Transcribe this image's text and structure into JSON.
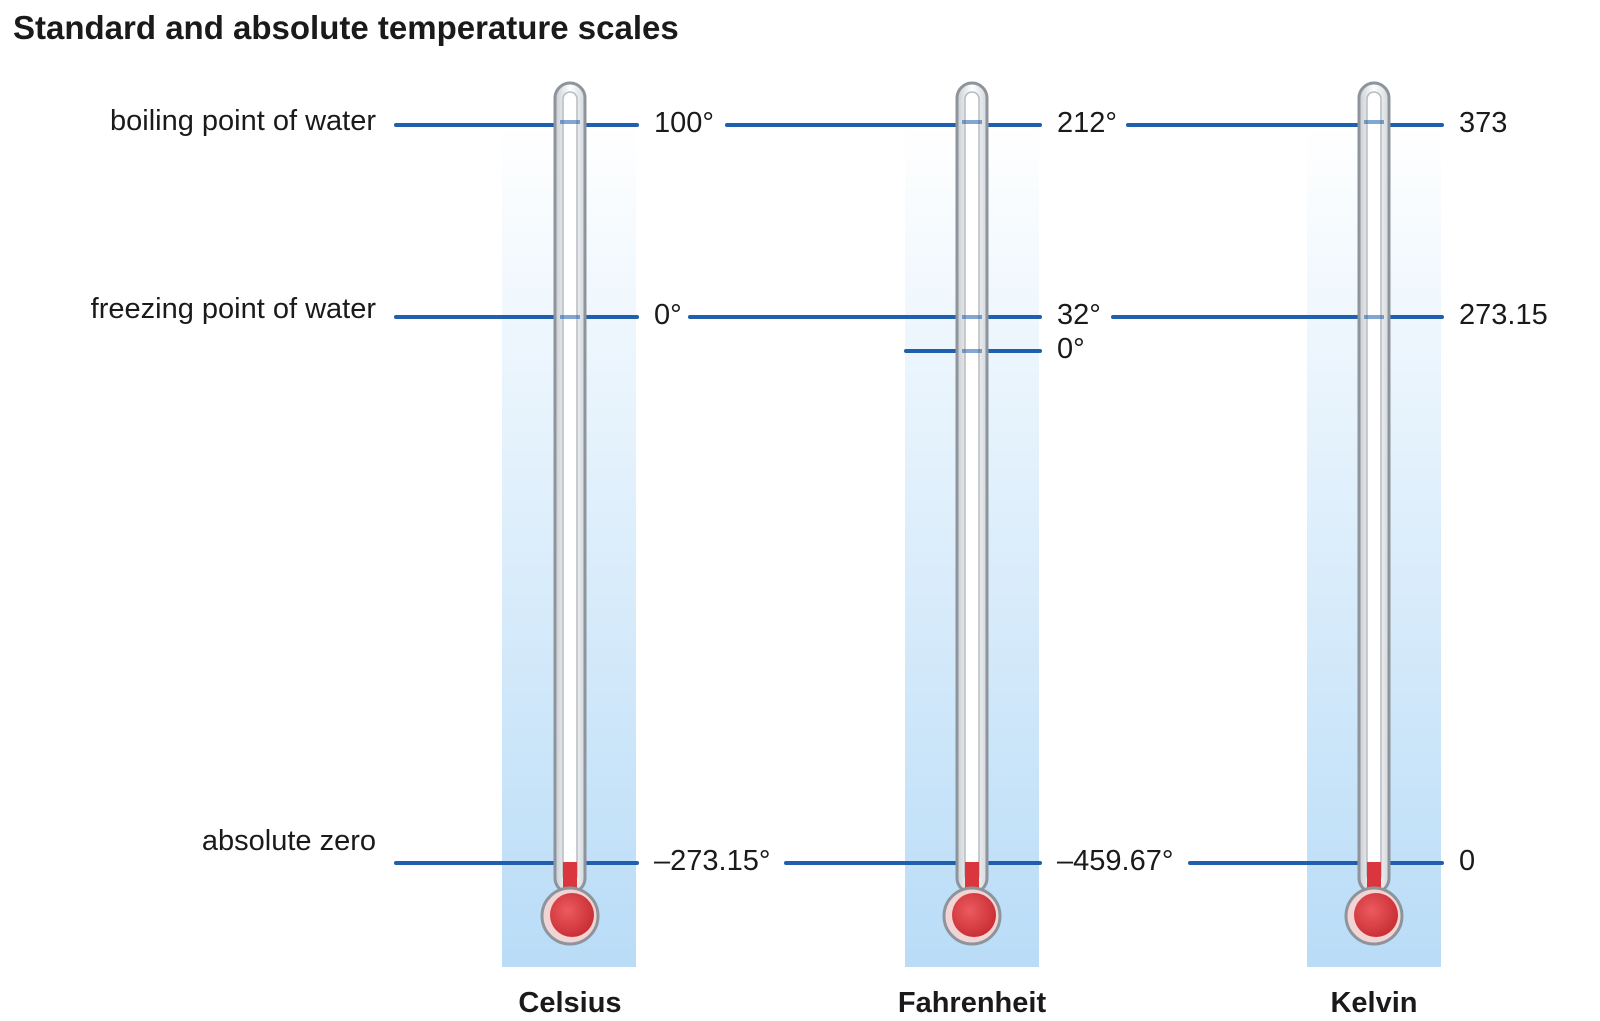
{
  "title": "Standard and absolute temperature scales",
  "colors": {
    "line": "#1f5fae",
    "column_top": "#ffffff",
    "column_bottom": "#b9dcf7",
    "mercury": "#d9373d",
    "glass": "#9aa0a6",
    "text": "#1a1a1a"
  },
  "reference_points": [
    {
      "id": "boiling",
      "label": "boiling point of water"
    },
    {
      "id": "freezing",
      "label": "freezing point of water"
    },
    {
      "id": "absolute-zero",
      "label": "absolute zero"
    }
  ],
  "scales": [
    {
      "id": "celsius",
      "name": "Celsius",
      "values": {
        "boiling": "100°",
        "freezing": "0°",
        "absolute-zero": "–273.15°"
      }
    },
    {
      "id": "fahrenheit",
      "name": "Fahrenheit",
      "values": {
        "boiling": "212°",
        "freezing": "32°",
        "zero": "0°",
        "absolute-zero": "–459.67°"
      }
    },
    {
      "id": "kelvin",
      "name": "Kelvin",
      "values": {
        "boiling": "373",
        "freezing": "273.15",
        "absolute-zero": "0"
      }
    }
  ]
}
